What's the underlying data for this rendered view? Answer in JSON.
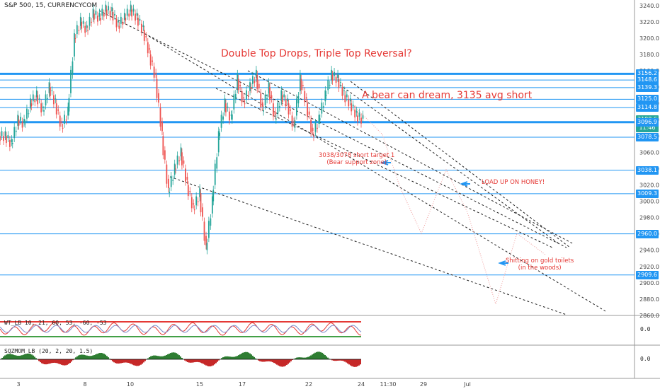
{
  "header": {
    "title": "S&P 500, 15, CURRENCYCOM"
  },
  "colors": {
    "hline": "#2196f3",
    "candle_up": "#26a69a",
    "candle_down": "#ef5350",
    "annotation": "#e53935",
    "tag": "#2196f3",
    "tag_current": "#26a69a"
  },
  "annotations": {
    "main_title": "Double Top Drops, Triple Top Reversal?",
    "bear_dream": "A bear can dream, 3135 avg short",
    "target_line1": "3038/3078 short target 1",
    "target_line2": "(Bear support zone)",
    "load_up": "LOAD UP ON HONEY!",
    "toilets_line1": "Shitting on gold toilets",
    "toilets_line2": "(in the woods)"
  },
  "indicators": {
    "rsi_label": "WT_LB 10, 21, 60, 53, -60, -53",
    "rsi_zero": "0.0",
    "sqz_label": "SQZMOM_LB (20, 2, 20, 1.5)",
    "sqz_zero": "0.0"
  },
  "chart_data": {
    "type": "candlestick",
    "title": "S&P 500, 15, CURRENCYCOM",
    "y_ticks": [
      3240,
      3220,
      3200,
      3180,
      3160,
      3140,
      3120,
      3100,
      3080,
      3060,
      3040,
      3020,
      3000,
      2980,
      2960,
      2940,
      2920,
      2900,
      2880,
      2860
    ],
    "ylim": [
      2860,
      3245
    ],
    "x_ticks": [
      "3",
      "8",
      "10",
      "15",
      "17",
      "22",
      "24",
      "11:30",
      "29",
      "Jul"
    ],
    "horizontal_levels": [
      3156.2,
      3148.6,
      3139.3,
      3125.0,
      3114.8,
      3096.9,
      3078.5,
      3038.1,
      3009.3,
      2960.0,
      2909.6
    ],
    "price_tags": [
      {
        "label": "3156.2",
        "value": 3156.2
      },
      {
        "label": "3148.6",
        "value": 3148.6
      },
      {
        "label": "3139.3",
        "value": 3139.3
      },
      {
        "label": "3125.0",
        "value": 3125.0
      },
      {
        "label": "3114.8",
        "value": 3114.8
      },
      {
        "label": "3100.6",
        "value": 3100.6
      },
      {
        "label": "11:46",
        "value": 3089.5
      },
      {
        "label": "3096.9",
        "value": 3096.9
      },
      {
        "label": "3078.5",
        "value": 3078.5
      },
      {
        "label": "3038.1",
        "value": 3038.1
      },
      {
        "label": "3009.3",
        "value": 3009.3
      },
      {
        "label": "2960.0",
        "value": 2960.0
      },
      {
        "label": "2909.6",
        "value": 2909.6
      }
    ],
    "price_path": [
      3080,
      3070,
      3100,
      3095,
      3120,
      3130,
      3110,
      3140,
      3120,
      3090,
      3110,
      3200,
      3220,
      3210,
      3230,
      3225,
      3235,
      3232,
      3215,
      3225,
      3235,
      3225,
      3210,
      3180,
      3150,
      3080,
      3010,
      3040,
      3060,
      3020,
      2990,
      3010,
      2940,
      3000,
      3080,
      3120,
      3100,
      3150,
      3120,
      3140,
      3155,
      3110,
      3140,
      3100,
      3130,
      3120,
      3090,
      3150,
      3120,
      3080,
      3100,
      3130,
      3155,
      3150,
      3130,
      3120,
      3105,
      3100
    ]
  }
}
